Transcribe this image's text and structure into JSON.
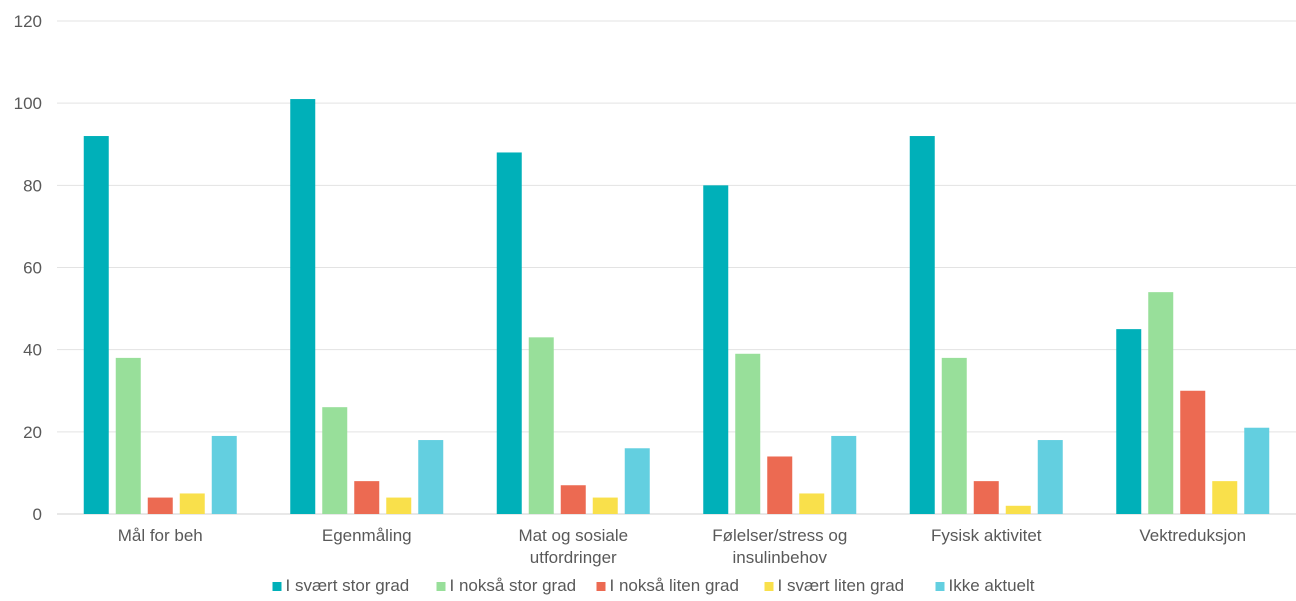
{
  "chart_data": {
    "type": "bar",
    "title": "",
    "xlabel": "",
    "ylabel": "",
    "ylim": [
      0,
      120
    ],
    "yticks": [
      "0",
      "20",
      "40",
      "60",
      "80",
      "100",
      "120"
    ],
    "grid": true,
    "legend_position": "bottom",
    "categories": [
      [
        "Mål for beh"
      ],
      [
        "Egenmåling"
      ],
      [
        "Mat og sosiale",
        "utfordringer"
      ],
      [
        "Følelser/stress og",
        "insulinbehov"
      ],
      [
        "Fysisk aktivitet"
      ],
      [
        "Vektreduksjon"
      ]
    ],
    "series": [
      {
        "name": "I svært stor grad",
        "color": "#00b0b9",
        "values": [
          92,
          101,
          88,
          80,
          92,
          45
        ]
      },
      {
        "name": "I nokså stor grad",
        "color": "#98df9a",
        "values": [
          38,
          26,
          43,
          39,
          38,
          54
        ]
      },
      {
        "name": "I nokså liten grad",
        "color": "#ec6a52",
        "values": [
          4,
          8,
          7,
          14,
          8,
          30
        ]
      },
      {
        "name": "I svært liten grad",
        "color": "#f9e04b",
        "values": [
          5,
          4,
          4,
          5,
          2,
          8
        ]
      },
      {
        "name": "Ikke aktuelt",
        "color": "#63cfe0",
        "values": [
          19,
          18,
          16,
          19,
          18,
          21
        ]
      }
    ]
  }
}
